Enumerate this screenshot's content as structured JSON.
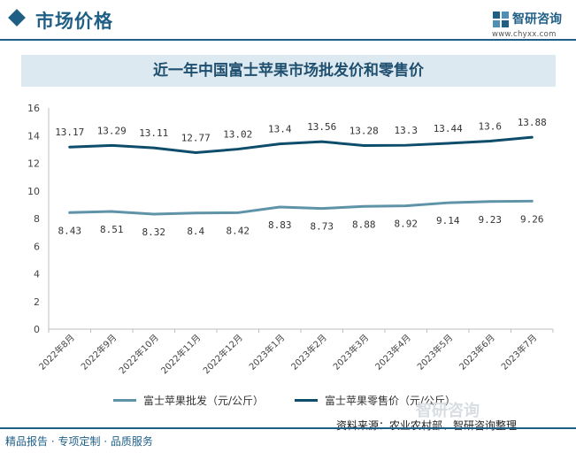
{
  "header": {
    "section_title": "市场价格",
    "logo_text": "智研咨询",
    "logo_url": "www.chyxx.com"
  },
  "chart_data": {
    "type": "line",
    "title": "近一年中国富士苹果市场批发价和零售价",
    "categories": [
      "2022年8月",
      "2022年9月",
      "2022年10月",
      "2022年11月",
      "2022年12月",
      "2023年1月",
      "2023年2月",
      "2023年3月",
      "2023年4月",
      "2023年5月",
      "2023年6月",
      "2023年7月"
    ],
    "series": [
      {
        "name": "富士苹果批发（元/公斤）",
        "color": "#5f93a8",
        "values": [
          8.43,
          8.51,
          8.32,
          8.4,
          8.42,
          8.83,
          8.73,
          8.88,
          8.92,
          9.14,
          9.23,
          9.26
        ]
      },
      {
        "name": "富士苹果零售价（元/公斤）",
        "color": "#0d4d6b",
        "values": [
          13.17,
          13.29,
          13.11,
          12.77,
          13.02,
          13.4,
          13.56,
          13.28,
          13.3,
          13.44,
          13.6,
          13.88
        ]
      }
    ],
    "ylim": [
      0,
      16
    ],
    "yticks": [
      0,
      2,
      4,
      6,
      8,
      10,
      12,
      14,
      16
    ],
    "grid": false,
    "legend": "bottom"
  },
  "footer": {
    "left_text": "精品报告 · 专项定制 · 品质服务",
    "source": "资料来源：农业农村部、智研咨询整理",
    "watermark": "智研咨询"
  }
}
